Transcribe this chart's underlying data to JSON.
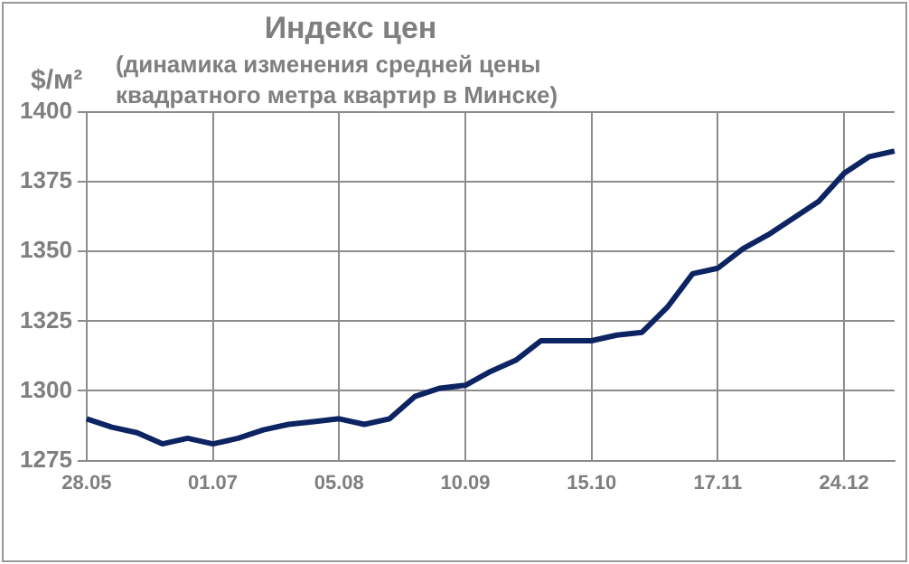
{
  "chart_data": {
    "type": "line",
    "title": "Индекс цен",
    "subtitle": "(динамика изменения средней цены квадратного метра квартир в Минске)",
    "ylabel": "$/м²",
    "categories": [
      "28.05",
      null,
      null,
      null,
      null,
      "01.07",
      null,
      null,
      null,
      null,
      "05.08",
      null,
      null,
      null,
      null,
      "10.09",
      null,
      null,
      null,
      null,
      "15.10",
      null,
      null,
      null,
      null,
      "17.11",
      null,
      null,
      null,
      null,
      "24.12",
      null,
      null
    ],
    "series": [
      {
        "color": "#0d2463",
        "values": [
          1290,
          1287,
          1285,
          1281,
          1283,
          1281,
          1283,
          1286,
          1288,
          1289,
          1290,
          1288,
          1290,
          1298,
          1301,
          1302,
          1307,
          1311,
          1318,
          1318,
          1318,
          1320,
          1321,
          1330,
          1342,
          1344,
          1351,
          1356,
          1362,
          1368,
          1378,
          1384,
          1386
        ]
      }
    ],
    "ylim": [
      1275,
      1400
    ],
    "yticks": [
      1275,
      1300,
      1325,
      1350,
      1375,
      1400
    ],
    "grid": true,
    "marker": "none"
  }
}
